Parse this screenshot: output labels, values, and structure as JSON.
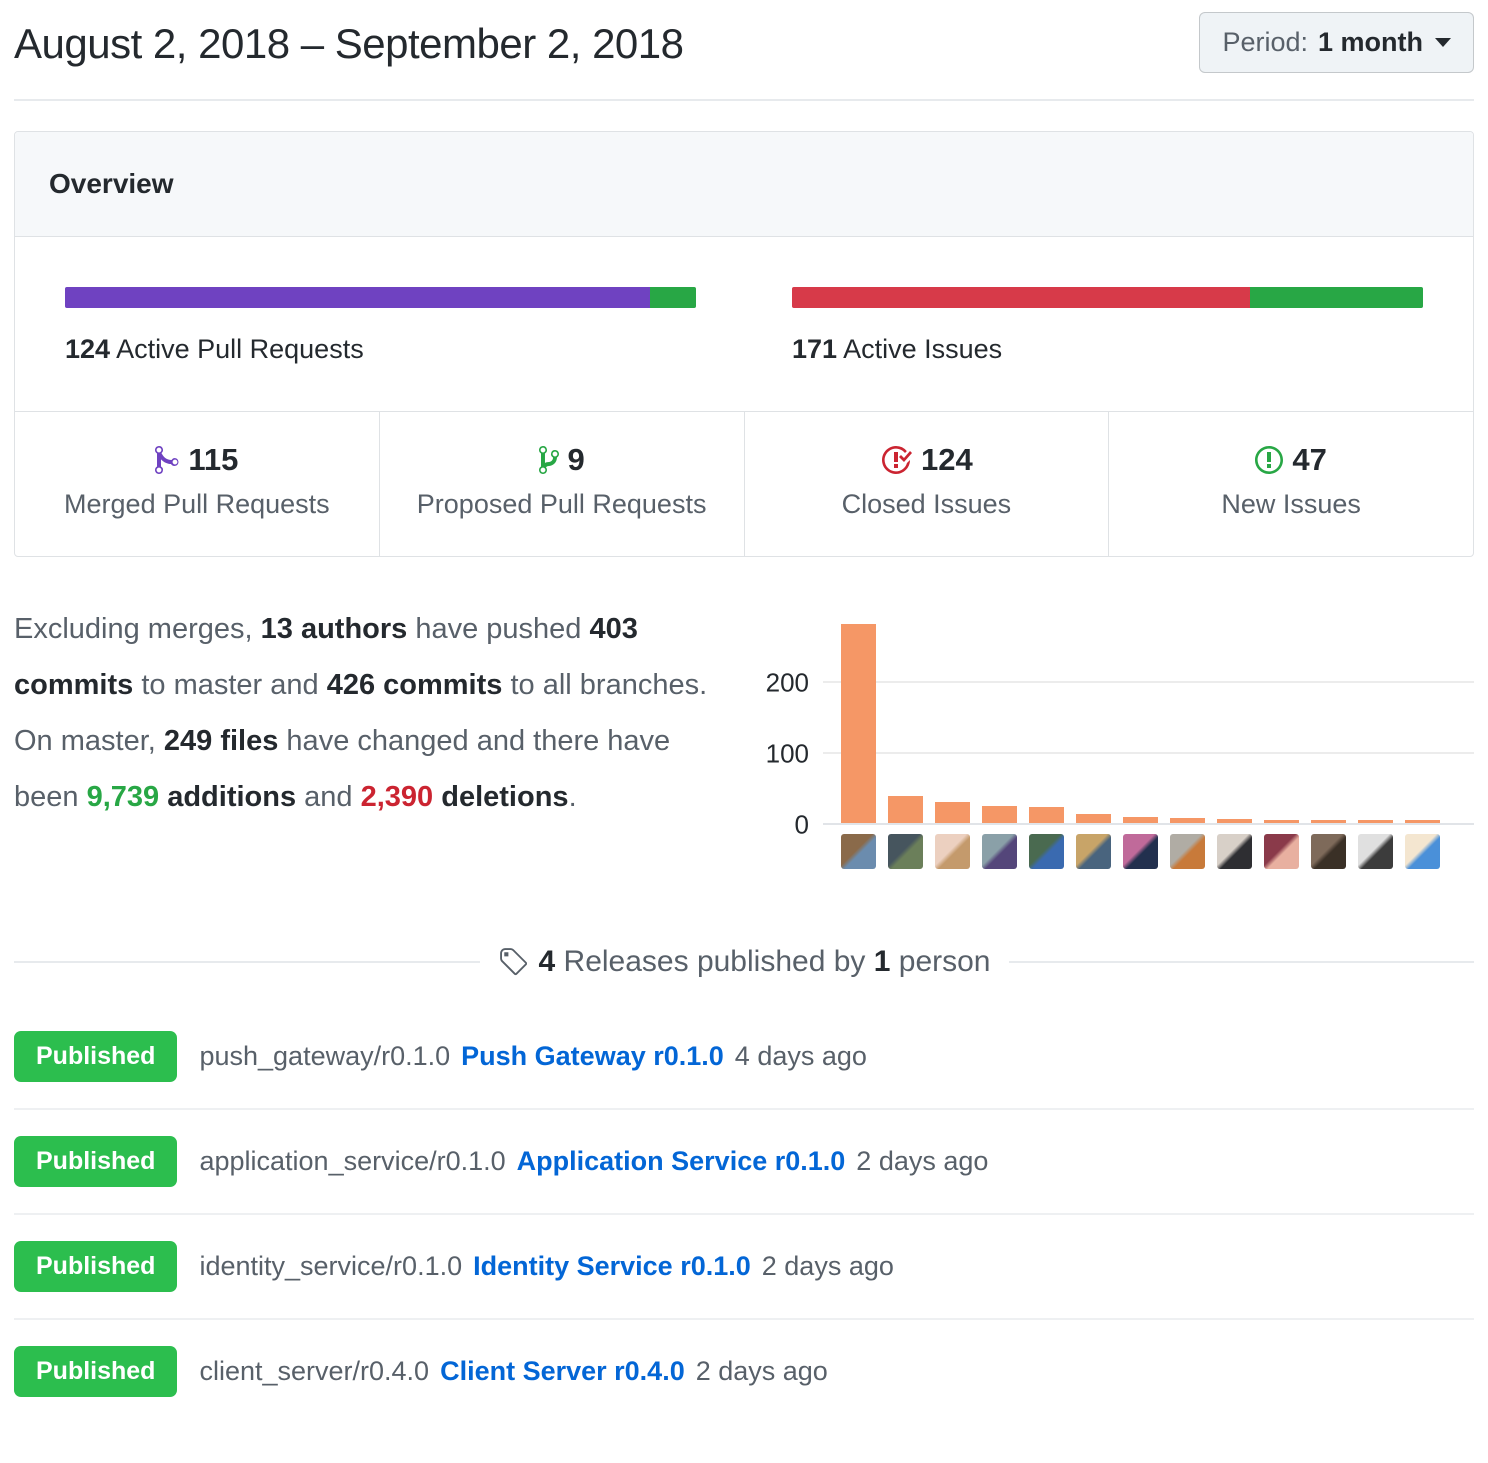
{
  "header": {
    "title": "August 2, 2018 – September 2, 2018",
    "period_label": "Period:",
    "period_value": "1 month"
  },
  "overview": {
    "title": "Overview",
    "pull_requests": {
      "count": "124",
      "label": "Active Pull Requests",
      "merged": 115,
      "proposed": 9,
      "merged_color": "#6f42c1",
      "proposed_color": "#28a745"
    },
    "issues": {
      "count": "171",
      "label": "Active Issues",
      "closed": 124,
      "new": 47,
      "closed_color": "#d73a49",
      "new_color": "#28a745"
    },
    "stats": [
      {
        "value": "115",
        "label": "Merged Pull Requests",
        "icon": "git-merge-icon",
        "color": "#6f42c1"
      },
      {
        "value": "9",
        "label": "Proposed Pull Requests",
        "icon": "git-branch-icon",
        "color": "#28a745"
      },
      {
        "value": "124",
        "label": "Closed Issues",
        "icon": "issue-closed-icon",
        "color": "#cb2431"
      },
      {
        "value": "47",
        "label": "New Issues",
        "icon": "issue-opened-icon",
        "color": "#28a745"
      }
    ]
  },
  "summary": {
    "segments": [
      {
        "t": "Excluding merges, ",
        "s": "normal"
      },
      {
        "t": "13 authors",
        "s": "bold"
      },
      {
        "t": " have pushed ",
        "s": "normal"
      },
      {
        "t": "403 commits",
        "s": "bold"
      },
      {
        "t": " to master and ",
        "s": "normal"
      },
      {
        "t": "426 commits",
        "s": "bold"
      },
      {
        "t": " to all branches. On master, ",
        "s": "normal"
      },
      {
        "t": "249 files",
        "s": "bold"
      },
      {
        "t": " have changed and there have been ",
        "s": "normal"
      },
      {
        "t": "9,739",
        "s": "add"
      },
      {
        "t": " ",
        "s": "normal"
      },
      {
        "t": "additions",
        "s": "bold"
      },
      {
        "t": " and ",
        "s": "normal"
      },
      {
        "t": "2,390",
        "s": "del"
      },
      {
        "t": " ",
        "s": "normal"
      },
      {
        "t": "deletions",
        "s": "bold"
      },
      {
        "t": ".",
        "s": "normal"
      }
    ]
  },
  "chart_data": {
    "type": "bar",
    "title": "",
    "xlabel": "",
    "ylabel": "",
    "categories": [
      "author-1",
      "author-2",
      "author-3",
      "author-4",
      "author-5",
      "author-6",
      "author-7",
      "author-8",
      "author-9",
      "author-10",
      "author-11",
      "author-12",
      "author-13"
    ],
    "values": [
      280,
      38,
      30,
      24,
      23,
      13,
      9,
      7,
      5,
      3,
      3,
      3,
      2
    ],
    "ylim": [
      0,
      313
    ],
    "yticks": [
      0,
      100,
      200
    ],
    "grid": true,
    "legend": false,
    "bar_color": "#f59766",
    "avatars": [
      {
        "name": "avatar-author-1",
        "colors": [
          "#8a6a4a",
          "#6b8cae"
        ]
      },
      {
        "name": "avatar-author-2",
        "colors": [
          "#46555e",
          "#6b7f5a"
        ]
      },
      {
        "name": "avatar-author-3",
        "colors": [
          "#ecd0c0",
          "#c49a6c"
        ]
      },
      {
        "name": "avatar-author-4",
        "colors": [
          "#8aa0a8",
          "#54467a"
        ]
      },
      {
        "name": "avatar-author-5",
        "colors": [
          "#4a6a50",
          "#3a6ab0"
        ]
      },
      {
        "name": "avatar-author-6",
        "colors": [
          "#c8a468",
          "#49647e"
        ]
      },
      {
        "name": "avatar-author-7",
        "colors": [
          "#c06a9a",
          "#22304e"
        ]
      },
      {
        "name": "avatar-author-8",
        "colors": [
          "#b0aca4",
          "#c87a3a"
        ]
      },
      {
        "name": "avatar-author-9",
        "colors": [
          "#d8d0c8",
          "#2e2e32"
        ]
      },
      {
        "name": "avatar-author-10",
        "colors": [
          "#8a3a4a",
          "#e8b0a0"
        ]
      },
      {
        "name": "avatar-author-11",
        "colors": [
          "#7e6a5a",
          "#3a3026"
        ]
      },
      {
        "name": "avatar-author-12",
        "colors": [
          "#e0e0e0",
          "#3c3c3c"
        ]
      },
      {
        "name": "avatar-author-13",
        "colors": [
          "#f4e6d0",
          "#4a90d9"
        ]
      }
    ]
  },
  "releases": {
    "header": {
      "count": "4",
      "middle": " Releases published by ",
      "person_count": "1",
      "suffix": " person"
    },
    "badge_label": "Published",
    "items": [
      {
        "tag": "push_gateway/r0.1.0",
        "link": "Push Gateway r0.1.0",
        "time": "4 days ago"
      },
      {
        "tag": "application_service/r0.1.0",
        "link": "Application Service r0.1.0",
        "time": "2 days ago"
      },
      {
        "tag": "identity_service/r0.1.0",
        "link": "Identity Service r0.1.0",
        "time": "2 days ago"
      },
      {
        "tag": "client_server/r0.4.0",
        "link": "Client Server r0.4.0",
        "time": "2 days ago"
      }
    ]
  }
}
